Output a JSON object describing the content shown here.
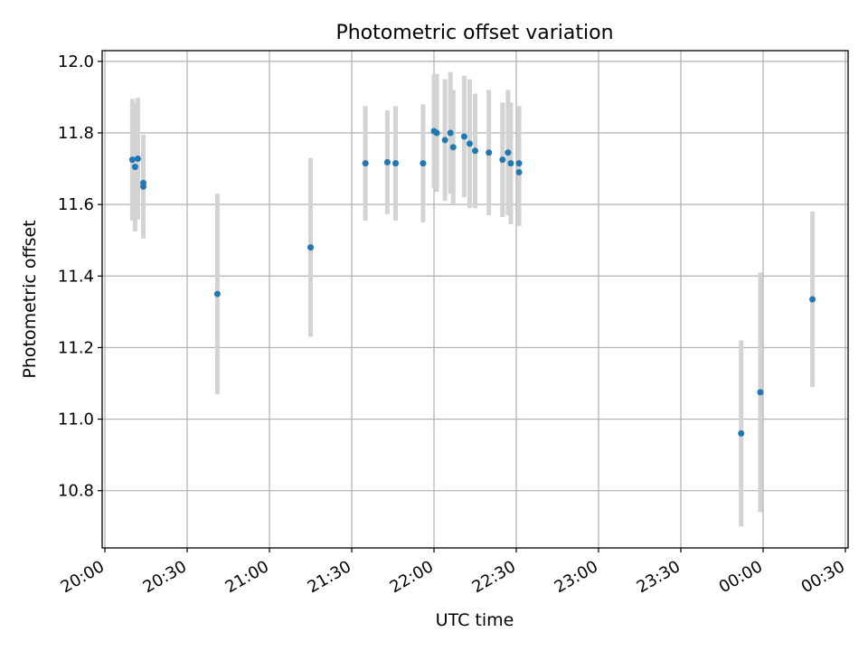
{
  "chart_data": {
    "type": "scatter",
    "title": "Photometric offset variation",
    "xlabel": "UTC time",
    "ylabel": "Photometric offset",
    "x_ticks": [
      "20:00",
      "20:30",
      "21:00",
      "21:30",
      "22:00",
      "22:30",
      "23:00",
      "23:30",
      "00:00",
      "00:30"
    ],
    "y_ticks": [
      "10.8",
      "11.0",
      "11.2",
      "11.4",
      "11.6",
      "11.8",
      "12.0"
    ],
    "xlim": [
      "19:59",
      "00:31"
    ],
    "ylim": [
      10.64,
      12.03
    ],
    "grid": true,
    "colors": {
      "points": "#1f77b4",
      "errorbars": "#d3d3d3",
      "grid": "#b0b0b0"
    },
    "points": [
      {
        "time": "20:10",
        "y": 11.725,
        "err": 0.17
      },
      {
        "time": "20:11",
        "y": 11.705,
        "err": 0.18
      },
      {
        "time": "20:12",
        "y": 11.728,
        "err": 0.17
      },
      {
        "time": "20:14",
        "y": 11.66,
        "err": 0.13
      },
      {
        "time": "20:14",
        "y": 11.65,
        "err": 0.145
      },
      {
        "time": "20:41",
        "y": 11.35,
        "err": 0.28
      },
      {
        "time": "21:15",
        "y": 11.48,
        "err": 0.25
      },
      {
        "time": "21:35",
        "y": 11.715,
        "err": 0.16
      },
      {
        "time": "21:43",
        "y": 11.718,
        "err": 0.145
      },
      {
        "time": "21:46",
        "y": 11.715,
        "err": 0.16
      },
      {
        "time": "21:56",
        "y": 11.715,
        "err": 0.165
      },
      {
        "time": "22:00",
        "y": 11.805,
        "err": 0.16
      },
      {
        "time": "22:01",
        "y": 11.8,
        "err": 0.165
      },
      {
        "time": "22:04",
        "y": 11.78,
        "err": 0.17
      },
      {
        "time": "22:06",
        "y": 11.8,
        "err": 0.17
      },
      {
        "time": "22:07",
        "y": 11.76,
        "err": 0.16
      },
      {
        "time": "22:11",
        "y": 11.79,
        "err": 0.17
      },
      {
        "time": "22:13",
        "y": 11.77,
        "err": 0.18
      },
      {
        "time": "22:15",
        "y": 11.75,
        "err": 0.16
      },
      {
        "time": "22:20",
        "y": 11.745,
        "err": 0.175
      },
      {
        "time": "22:25",
        "y": 11.725,
        "err": 0.16
      },
      {
        "time": "22:27",
        "y": 11.745,
        "err": 0.175
      },
      {
        "time": "22:28",
        "y": 11.715,
        "err": 0.17
      },
      {
        "time": "22:31",
        "y": 11.69,
        "err": 0.15
      },
      {
        "time": "22:31",
        "y": 11.715,
        "err": 0.16
      },
      {
        "time": "23:52",
        "y": 10.96,
        "err": 0.26
      },
      {
        "time": "23:59",
        "y": 11.075,
        "err": 0.335
      },
      {
        "time": "00:18",
        "y": 11.335,
        "err": 0.245
      }
    ]
  }
}
